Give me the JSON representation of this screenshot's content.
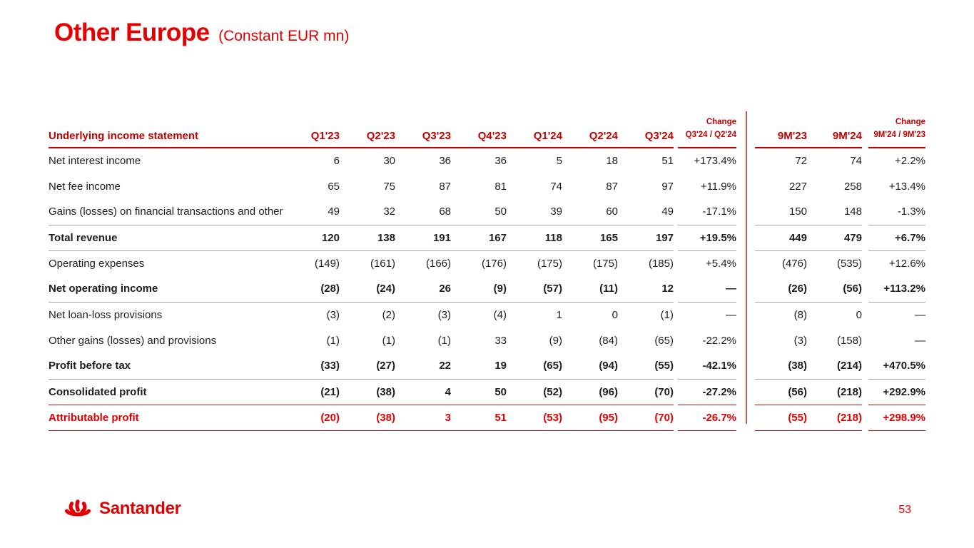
{
  "page": {
    "title": "Other Europe",
    "subtitle": "(Constant EUR mn)",
    "page_number": "53",
    "logo_text": "Santander"
  },
  "colors": {
    "santander_red": "#E40000",
    "header_red": "#C30000",
    "gray_line": "#A6A6A6",
    "divider_red": "#C75B4E",
    "text_dark": "#1d1d1b"
  },
  "table": {
    "header": {
      "label": "Underlying income statement",
      "quarter_cols": [
        "Q1'23",
        "Q2'23",
        "Q3'23",
        "Q4'23",
        "Q1'24",
        "Q2'24",
        "Q3'24"
      ],
      "change_q": {
        "line1": "Change",
        "line2": "Q3'24 / Q2'24"
      },
      "nine_month_cols": [
        "9M'23",
        "9M'24"
      ],
      "change_9m": {
        "line1": "Change",
        "line2": "9M'24 / 9M'23"
      }
    },
    "rows": [
      {
        "label": "Net interest income",
        "bold": false,
        "red": false,
        "line_below": "none",
        "values": [
          "6",
          "30",
          "36",
          "36",
          "5",
          "18",
          "51"
        ],
        "change_q": "+173.4%",
        "nine_months": [
          "72",
          "74"
        ],
        "change_9m": "+2.2%"
      },
      {
        "label": "Net fee income",
        "bold": false,
        "red": false,
        "line_below": "none",
        "values": [
          "65",
          "75",
          "87",
          "81",
          "74",
          "87",
          "97"
        ],
        "change_q": "+11.9%",
        "nine_months": [
          "227",
          "258"
        ],
        "change_9m": "+13.4%"
      },
      {
        "label": "Gains (losses) on financial transactions and other",
        "bold": false,
        "red": false,
        "line_below": "gray",
        "values": [
          "49",
          "32",
          "68",
          "50",
          "39",
          "60",
          "49"
        ],
        "change_q": "-17.1%",
        "nine_months": [
          "150",
          "148"
        ],
        "change_9m": "-1.3%"
      },
      {
        "label": "Total revenue",
        "bold": true,
        "red": false,
        "line_below": "gray",
        "values": [
          "120",
          "138",
          "191",
          "167",
          "118",
          "165",
          "197"
        ],
        "change_q": "+19.5%",
        "nine_months": [
          "449",
          "479"
        ],
        "change_9m": "+6.7%"
      },
      {
        "label": "Operating expenses",
        "bold": false,
        "red": false,
        "line_below": "none",
        "values": [
          "(149)",
          "(161)",
          "(166)",
          "(176)",
          "(175)",
          "(175)",
          "(185)"
        ],
        "change_q": "+5.4%",
        "nine_months": [
          "(476)",
          "(535)"
        ],
        "change_9m": "+12.6%"
      },
      {
        "label": "Net operating income",
        "bold": true,
        "red": false,
        "line_below": "gray",
        "values": [
          "(28)",
          "(24)",
          "26",
          "(9)",
          "(57)",
          "(11)",
          "12"
        ],
        "change_q": "—",
        "nine_months": [
          "(26)",
          "(56)"
        ],
        "change_9m": "+113.2%"
      },
      {
        "label": "Net loan-loss provisions",
        "bold": false,
        "red": false,
        "line_below": "none",
        "values": [
          "(3)",
          "(2)",
          "(3)",
          "(4)",
          "1",
          "0",
          "(1)"
        ],
        "change_q": "—",
        "nine_months": [
          "(8)",
          "0"
        ],
        "change_9m": "—"
      },
      {
        "label": "Other gains (losses) and provisions",
        "bold": false,
        "red": false,
        "line_below": "none",
        "values": [
          "(1)",
          "(1)",
          "(1)",
          "33",
          "(9)",
          "(84)",
          "(65)"
        ],
        "change_q": "-22.2%",
        "nine_months": [
          "(3)",
          "(158)"
        ],
        "change_9m": "—"
      },
      {
        "label": "Profit before tax",
        "bold": true,
        "red": false,
        "line_below": "gray",
        "values": [
          "(33)",
          "(27)",
          "22",
          "19",
          "(65)",
          "(94)",
          "(55)"
        ],
        "change_q": "-42.1%",
        "nine_months": [
          "(38)",
          "(214)"
        ],
        "change_9m": "+470.5%"
      },
      {
        "label": "Consolidated profit",
        "bold": true,
        "red": false,
        "line_below": "red",
        "values": [
          "(21)",
          "(38)",
          "4",
          "50",
          "(52)",
          "(96)",
          "(70)"
        ],
        "change_q": "-27.2%",
        "nine_months": [
          "(56)",
          "(218)"
        ],
        "change_9m": "+292.9%"
      },
      {
        "label": "Attributable profit",
        "bold": true,
        "red": true,
        "line_below": "red",
        "values": [
          "(20)",
          "(38)",
          "3",
          "51",
          "(53)",
          "(95)",
          "(70)"
        ],
        "change_q": "-26.7%",
        "nine_months": [
          "(55)",
          "(218)"
        ],
        "change_9m": "+298.9%"
      }
    ]
  }
}
